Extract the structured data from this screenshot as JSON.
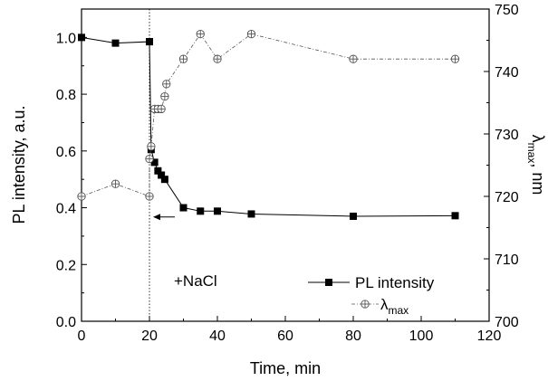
{
  "chart_data": {
    "type": "line",
    "xlabel": "Time, min",
    "ylabel_left": "PL intensity, a.u.",
    "ylabel_right": {
      "symbol": "λ",
      "subscript": "max",
      "unit": ", nm"
    },
    "xlim": [
      0,
      120
    ],
    "ylim_left": [
      0.0,
      1.1
    ],
    "ylim_right": [
      700,
      750
    ],
    "x_ticks": [
      "0",
      "20",
      "40",
      "60",
      "80",
      "100",
      "120"
    ],
    "y_ticks_left": [
      "0.0",
      "0.2",
      "0.4",
      "0.6",
      "0.8",
      "1.0"
    ],
    "y_ticks_right": [
      "700",
      "710",
      "720",
      "730",
      "740",
      "750"
    ],
    "x_tick_values": [
      0,
      20,
      40,
      60,
      80,
      100,
      120
    ],
    "y_tick_values_left": [
      0.0,
      0.2,
      0.4,
      0.6,
      0.8,
      1.0
    ],
    "y_tick_values_right": [
      700,
      710,
      720,
      730,
      740,
      750
    ],
    "annotation": "+NaCl",
    "event_x": 20,
    "arrow_y_right": 716.7,
    "grid": false,
    "legend_position": "lower-right",
    "series": [
      {
        "name": "PL intensity",
        "axis": "left",
        "marker": "filled-square",
        "line": "solid",
        "x": [
          0,
          10,
          20,
          20,
          20.5,
          21.5,
          22.5,
          23.5,
          24.5,
          30,
          35,
          40,
          50,
          80,
          110
        ],
        "y": [
          1.0,
          0.98,
          0.985,
          0.985,
          0.605,
          0.56,
          0.53,
          0.515,
          0.5,
          0.4,
          0.388,
          0.388,
          0.378,
          0.37,
          0.372
        ]
      },
      {
        "name": "λmax",
        "label_symbol": "λ",
        "label_subscript": "max",
        "axis": "right",
        "marker": "crossed-circle",
        "line": "dash-dot",
        "x": [
          0,
          10,
          20,
          20,
          20.5,
          21.5,
          22.5,
          23.5,
          24.5,
          25,
          30,
          35,
          40,
          50,
          80,
          110
        ],
        "y": [
          720,
          722,
          720,
          726,
          728,
          734,
          734,
          734,
          736,
          738,
          742,
          746,
          742,
          746,
          742,
          742
        ]
      }
    ]
  }
}
